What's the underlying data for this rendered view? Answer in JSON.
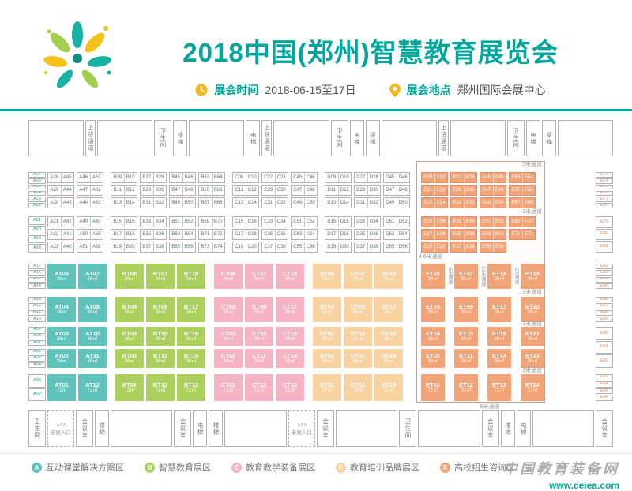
{
  "header": {
    "title": "2018中国(郑州)智慧教育展览会",
    "time_label": "展会时间",
    "time_value": "2018-06-15至17日",
    "location_label": "展会地点",
    "location_value": "郑州国际会展中心"
  },
  "colors": {
    "accent": "#00a79d",
    "yellow": "#f5b91e",
    "A": "#5fc3bc",
    "B": "#abd05e",
    "C": "#f5b3c4",
    "D": "#f8d2a0",
    "E": "#f0a478"
  },
  "plan": {
    "top_facilities": [
      {
        "label": ""
      },
      {
        "label": "上货通道"
      },
      {
        "label": ""
      },
      {
        "label": "卫生间"
      },
      {
        "label": "楼梯"
      },
      {
        "label": ""
      },
      {
        "label": "电梯"
      },
      {
        "label": "上货通道"
      },
      {
        "label": ""
      },
      {
        "label": "卫生间"
      },
      {
        "label": "电梯"
      },
      {
        "label": "楼梯"
      },
      {
        "label": ""
      },
      {
        "label": "上货通道"
      },
      {
        "label": ""
      },
      {
        "label": "卫生间"
      },
      {
        "label": "电梯"
      },
      {
        "label": "楼梯"
      },
      {
        "label": ""
      }
    ],
    "bottom_facilities": [
      {
        "label": "卫生间"
      },
      {
        "label": "参展入口",
        "entrance": true
      },
      {
        "label": "会议室"
      },
      {
        "label": "楼梯"
      },
      {
        "label": ""
      },
      {
        "label": "会议室"
      },
      {
        "label": "电梯"
      },
      {
        "label": "楼梯"
      },
      {
        "label": ""
      },
      {
        "label": "参展入口",
        "entrance": true
      },
      {
        "label": "会议室"
      },
      {
        "label": ""
      },
      {
        "label": "卫生间"
      },
      {
        "label": ""
      },
      {
        "label": "会议室"
      },
      {
        "label": "楼梯"
      },
      {
        "label": "电梯"
      },
      {
        "label": ""
      },
      {
        "label": "会议室"
      }
    ],
    "left_wall_groups": [
      [
        "A27",
        "A26",
        "A25",
        "A24",
        "A23",
        "A22"
      ],
      [
        "A21",
        "A20",
        "A19",
        "A18"
      ],
      [
        "A17",
        "A16",
        "A15",
        "A14"
      ],
      [
        "A13",
        "A12",
        "A11",
        "A10"
      ],
      [
        "A09",
        "A08",
        "A07"
      ],
      [
        "A06",
        "A05",
        "A04"
      ],
      [
        "A03",
        "A02"
      ]
    ],
    "right_wall_groups": [
      [
        "E73",
        "E74",
        "E75",
        "E76",
        "E77",
        "E78"
      ],
      [
        "E79",
        "E80",
        "E81"
      ],
      [
        "E82",
        "E83",
        "E84",
        "E85"
      ],
      [
        "E86",
        "E87",
        "E88",
        "E89"
      ],
      [
        "E90",
        "E91",
        "E92"
      ],
      [
        "E93",
        "E94",
        "E95",
        "E96"
      ]
    ],
    "upper_zones": [
      {
        "zone": "A",
        "cols": [
          [
            "A28 A45",
            "A29 A44",
            "A30 A43",
            "A31 A42",
            "A32 A41",
            "A33 A40"
          ],
          [
            "A46 A63",
            "A47 A62",
            "A48 A61",
            "A49 A60",
            "A50 A59",
            "A51 A58"
          ]
        ]
      },
      {
        "zone": "B",
        "cols": [
          [
            "B09 B10",
            "B11 B12",
            "B13 B14",
            "B15 B16",
            "B17 B18",
            "B19 B20"
          ],
          [
            "B27 B28",
            "B29 B30",
            "B31 B32",
            "B33 B34",
            "B35 B36",
            "B37 B38"
          ],
          [
            "B45 B46",
            "B47 B48",
            "B49 B50",
            "B51 B52",
            "B53 B54",
            "B55 B56"
          ],
          [
            "B63 B64",
            "B65 B66",
            "B67 B68",
            "B69 B70",
            "B71 B72",
            "B73 B74"
          ]
        ]
      },
      {
        "zone": "C",
        "cols": [
          [
            "C09 C10",
            "C11 C12",
            "C13 C14",
            "C15 C16",
            "C17 C18",
            "C19 C20"
          ],
          [
            "C27 C28",
            "C29 C30",
            "C31 C32",
            "C33 C34",
            "C35 C36",
            "C37 C38"
          ],
          [
            "C45 C46",
            "C47 C48",
            "C49 C50",
            "C51 C52",
            "C53 C54",
            "C55 C56"
          ]
        ]
      },
      {
        "zone": "D",
        "cols": [
          [
            "D09 D10",
            "D11 D12",
            "D13 D14",
            "D15 D16",
            "D17 D18",
            "D19 D20"
          ],
          [
            "D27 D28",
            "D29 D30",
            "D31 D32",
            "D33 D34",
            "D35 D36",
            "D37 D38"
          ],
          [
            "D45 D46",
            "D47 D48",
            "D49 D50",
            "D51 D52",
            "D53 D54",
            "D55 D56"
          ]
        ]
      }
    ],
    "upper_e_cols": [
      [
        "E09 E10",
        "E11 E12",
        "E13 E14",
        "E15 E16",
        "E17 E18",
        "E19 E20"
      ],
      [
        "E27 E28",
        "E29 E30",
        "E31 E32",
        "E33 E34",
        "E35 E36",
        "E37 E38"
      ],
      [
        "E45 E46",
        "E47 E48",
        "E49 E50",
        "E51 E52",
        "E53 E54",
        "E55 E56"
      ],
      [
        "E63 E64",
        "E65 E66",
        "E67 E68",
        "E69 E70",
        "E71 E72",
        ""
      ]
    ],
    "lower_zones": [
      {
        "zone": "A",
        "cols": [
          [
            [
              "AT06",
              "36㎡"
            ],
            [
              "AT04",
              "36㎡"
            ],
            [
              "AT03",
              "36㎡"
            ],
            [
              "AT02",
              "36㎡"
            ],
            [
              "AT01",
              "72㎡"
            ]
          ],
          [
            [
              "AT07",
              "36㎡"
            ],
            [
              "AT09",
              "36㎡"
            ],
            [
              "AT10",
              "36㎡"
            ],
            [
              "AT11",
              "36㎡"
            ],
            [
              "AT12",
              "72㎡"
            ]
          ]
        ]
      },
      {
        "zone": "B",
        "cols": [
          [
            [
              "BT06",
              "36㎡"
            ],
            [
              "BT04",
              "36㎡"
            ],
            [
              "BT03",
              "36㎡"
            ],
            [
              "BT02",
              "36㎡"
            ],
            [
              "BT01",
              "72㎡"
            ]
          ],
          [
            [
              "BT07",
              "36㎡"
            ],
            [
              "BT09",
              "36㎡"
            ],
            [
              "BT10",
              "36㎡"
            ],
            [
              "BT11",
              "36㎡"
            ],
            [
              "BT12",
              "72㎡"
            ]
          ],
          [
            [
              "BT18",
              "36㎡"
            ],
            [
              "BT17",
              "36㎡"
            ],
            [
              "BT16",
              "36㎡"
            ],
            [
              "BT14",
              "36㎡"
            ],
            [
              "BT13",
              "72㎡"
            ]
          ]
        ]
      },
      {
        "zone": "C",
        "cols": [
          [
            [
              "CT06",
              "36㎡"
            ],
            [
              "CT04",
              "36㎡"
            ],
            [
              "CT03",
              "36㎡"
            ],
            [
              "CT02",
              "36㎡"
            ],
            [
              "CT01",
              "72㎡"
            ]
          ],
          [
            [
              "CT07",
              "36㎡"
            ],
            [
              "CT09",
              "36㎡"
            ],
            [
              "CT10",
              "36㎡"
            ],
            [
              "CT11",
              "36㎡"
            ],
            [
              "CT12",
              "72㎡"
            ]
          ],
          [
            [
              "CT18",
              "36㎡"
            ],
            [
              "CT17",
              "36㎡"
            ],
            [
              "CT16",
              "36㎡"
            ],
            [
              "CT14",
              "36㎡"
            ],
            [
              "CT13",
              "72㎡"
            ]
          ]
        ]
      },
      {
        "zone": "D",
        "cols": [
          [
            [
              "DT06",
              "36㎡"
            ],
            [
              "DT04",
              "36㎡"
            ],
            [
              "DT03",
              "36㎡"
            ],
            [
              "DT02",
              "36㎡"
            ],
            [
              "DT01",
              "72㎡"
            ]
          ],
          [
            [
              "DT07",
              "36㎡"
            ],
            [
              "DT09",
              "36㎡"
            ],
            [
              "DT10",
              "36㎡"
            ],
            [
              "DT11",
              "36㎡"
            ],
            [
              "DT12",
              "72㎡"
            ]
          ],
          [
            [
              "DT18",
              "36㎡"
            ],
            [
              "DT17",
              "36㎡"
            ],
            [
              "DT16",
              "36㎡"
            ],
            [
              "DT14",
              "36㎡"
            ],
            [
              "DT13",
              "72㎡"
            ]
          ]
        ]
      }
    ],
    "lower_e_cols": [
      [
        [
          "ET06",
          "36㎡"
        ],
        [
          "ET05",
          "36㎡"
        ],
        [
          "ET04",
          "36㎡"
        ],
        [
          "ET02",
          "36㎡"
        ],
        [
          "ET01",
          "72㎡"
        ]
      ],
      [
        [
          "ET07",
          "36㎡"
        ],
        [
          "ET09",
          "36㎡"
        ],
        [
          "ET10",
          "36㎡"
        ],
        [
          "ET11",
          "36㎡"
        ],
        [
          "ET12",
          "72㎡"
        ]
      ],
      [
        [
          "ET18",
          "36㎡"
        ],
        [
          "ET17",
          "36㎡"
        ],
        [
          "ET16",
          "36㎡"
        ],
        [
          "ET14",
          "36㎡"
        ],
        [
          "ET13",
          "72㎡"
        ]
      ],
      [
        [
          "ET19",
          "36㎡"
        ],
        [
          "ET20",
          "36㎡"
        ],
        [
          "ET21",
          "36㎡"
        ],
        [
          "ET23",
          "36㎡"
        ],
        [
          "ET24",
          "72㎡"
        ]
      ]
    ],
    "e_vertical_aisles": [
      "5米通道",
      "3.5米通道",
      "5米通道"
    ],
    "aisle_labels": [
      "5米通道",
      "3米通道",
      "4.6米通道",
      "3米通道",
      "3米通道",
      "3米通道",
      "8米通道"
    ]
  },
  "legend": [
    {
      "code": "A",
      "label": "互动课堂解决方案区"
    },
    {
      "code": "B",
      "label": "智慧教育展区"
    },
    {
      "code": "C",
      "label": "教育教学装备展区"
    },
    {
      "code": "D",
      "label": "教育培训品牌展区"
    },
    {
      "code": "E",
      "label": "高校招生咨询区"
    }
  ],
  "watermark": {
    "name": "中国教育装备网",
    "url": "www.ceiea.com"
  }
}
